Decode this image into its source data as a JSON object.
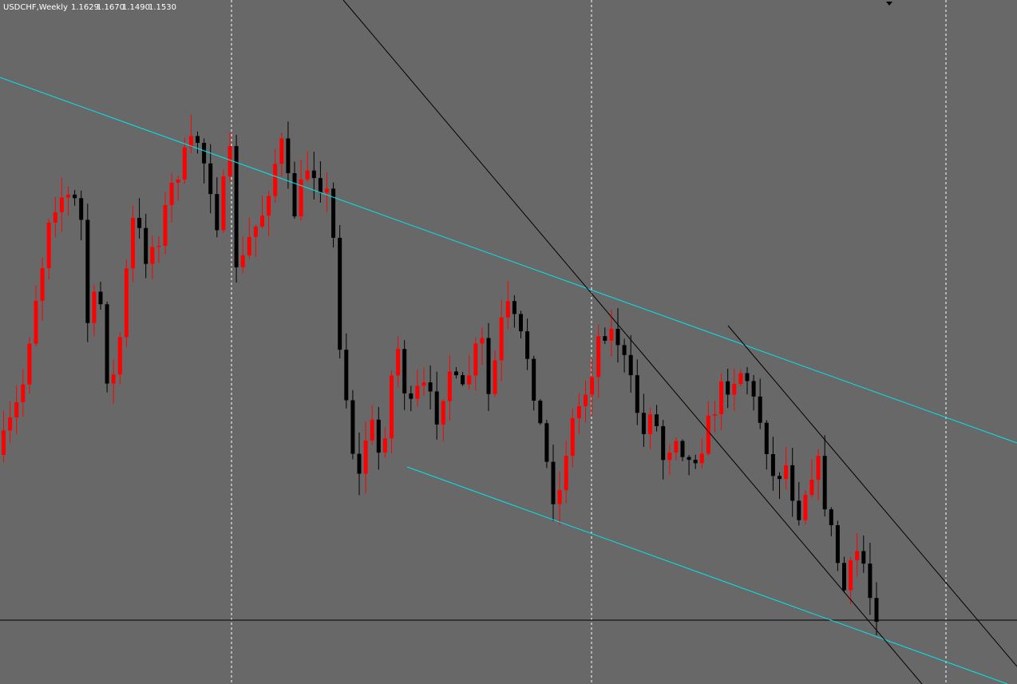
{
  "header": {
    "symbol": "USDCHF,Weekly",
    "open": "1.1629",
    "high": "1.1670",
    "low": "1.1490",
    "close": "1.1530"
  }
}
